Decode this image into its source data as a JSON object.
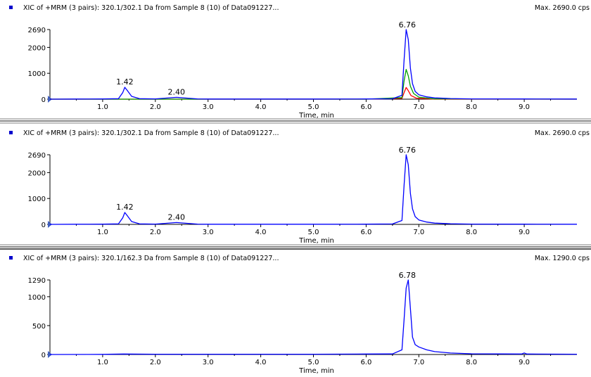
{
  "chart_data": [
    {
      "type": "line",
      "title": "XIC of +MRM (3 pairs): 320.1/302.1 Da  from Sample 8 (10) of Data091227...",
      "max_label": "Max. 2690.0 cps",
      "xlabel": "Time, min",
      "ylabel": "",
      "xlim": [
        0,
        10.0
      ],
      "ylim": [
        0,
        2690
      ],
      "xticks": [
        "1.0",
        "2.0",
        "3.0",
        "4.0",
        "5.0",
        "6.0",
        "7.0",
        "8.0",
        "9.0"
      ],
      "yticks": [
        "0",
        "1000",
        "2000",
        "2690"
      ],
      "peak_labels": [
        {
          "text": "1.42",
          "x": 1.42,
          "y": 460
        },
        {
          "text": "2.40",
          "x": 2.4,
          "y": 70
        },
        {
          "text": "6.76",
          "x": 6.78,
          "y": 2690
        }
      ],
      "series": [
        {
          "color": "#0000ff",
          "x": [
            0.0,
            0.5,
            1.0,
            1.3,
            1.38,
            1.42,
            1.47,
            1.55,
            1.7,
            2.0,
            2.2,
            2.4,
            2.6,
            2.8,
            3.0,
            4.0,
            5.0,
            6.0,
            6.5,
            6.68,
            6.72,
            6.76,
            6.8,
            6.84,
            6.88,
            6.93,
            7.0,
            7.15,
            7.3,
            7.6,
            8.0,
            9.0,
            10.0
          ],
          "y": [
            0,
            5,
            8,
            20,
            250,
            460,
            330,
            110,
            20,
            10,
            40,
            70,
            40,
            10,
            5,
            5,
            5,
            8,
            15,
            150,
            1500,
            2690,
            2300,
            1200,
            600,
            300,
            170,
            90,
            50,
            25,
            12,
            8,
            5
          ]
        },
        {
          "color": "#00a000",
          "x": [
            0.0,
            6.0,
            6.68,
            6.72,
            6.76,
            6.8,
            6.84,
            6.9,
            7.0,
            7.3,
            10.0
          ],
          "y": [
            0,
            0,
            60,
            700,
            1150,
            900,
            500,
            220,
            80,
            10,
            0
          ]
        },
        {
          "color": "#ff0000",
          "x": [
            0.0,
            6.0,
            6.68,
            6.72,
            6.76,
            6.8,
            6.85,
            6.95,
            7.3,
            10.0
          ],
          "y": [
            0,
            0,
            30,
            250,
            450,
            330,
            140,
            40,
            0,
            0
          ]
        }
      ]
    },
    {
      "type": "line",
      "title": "XIC of +MRM (3 pairs): 320.1/302.1 Da  from Sample 8 (10) of Data091227...",
      "max_label": "Max. 2690.0 cps",
      "xlabel": "Time, min",
      "ylabel": "",
      "xlim": [
        0,
        10.0
      ],
      "ylim": [
        0,
        2690
      ],
      "xticks": [
        "1.0",
        "2.0",
        "3.0",
        "4.0",
        "5.0",
        "6.0",
        "7.0",
        "8.0",
        "9.0"
      ],
      "yticks": [
        "0",
        "1000",
        "2000",
        "2690"
      ],
      "peak_labels": [
        {
          "text": "1.42",
          "x": 1.42,
          "y": 460
        },
        {
          "text": "2.40",
          "x": 2.4,
          "y": 70
        },
        {
          "text": "6.76",
          "x": 6.78,
          "y": 2690
        }
      ],
      "series": [
        {
          "color": "#0000ff",
          "x": [
            0.0,
            0.5,
            1.0,
            1.3,
            1.38,
            1.42,
            1.47,
            1.55,
            1.7,
            2.0,
            2.2,
            2.4,
            2.6,
            2.8,
            3.0,
            4.0,
            5.0,
            6.0,
            6.5,
            6.68,
            6.72,
            6.76,
            6.8,
            6.84,
            6.88,
            6.93,
            7.0,
            7.15,
            7.3,
            7.6,
            8.0,
            9.0,
            10.0
          ],
          "y": [
            0,
            5,
            8,
            20,
            250,
            460,
            330,
            110,
            20,
            10,
            40,
            70,
            40,
            10,
            5,
            5,
            5,
            8,
            15,
            150,
            1500,
            2690,
            2300,
            1200,
            600,
            300,
            170,
            90,
            50,
            25,
            12,
            8,
            5
          ]
        }
      ]
    },
    {
      "type": "line",
      "title": "XIC of +MRM (3 pairs): 320.1/162.3 Da  from Sample 8 (10) of Data091227...",
      "max_label": "Max. 1290.0 cps",
      "xlabel": "Time, min",
      "ylabel": "",
      "xlim": [
        0,
        10.0
      ],
      "ylim": [
        0,
        1290
      ],
      "xticks": [
        "1.0",
        "2.0",
        "3.0",
        "4.0",
        "5.0",
        "6.0",
        "7.0",
        "8.0",
        "9.0"
      ],
      "yticks": [
        "0",
        "500",
        "1000",
        "1290"
      ],
      "peak_labels": [
        {
          "text": "6.78",
          "x": 6.78,
          "y": 1290
        }
      ],
      "series": [
        {
          "color": "#0000ff",
          "x": [
            0.0,
            1.0,
            1.4,
            2.0,
            3.0,
            4.0,
            5.0,
            6.0,
            6.5,
            6.68,
            6.72,
            6.76,
            6.8,
            6.84,
            6.88,
            6.93,
            7.0,
            7.15,
            7.3,
            7.6,
            8.0,
            8.95,
            9.0,
            9.05,
            10.0
          ],
          "y": [
            0,
            3,
            8,
            5,
            5,
            5,
            5,
            8,
            10,
            80,
            600,
            1150,
            1290,
            800,
            300,
            170,
            130,
            80,
            50,
            25,
            12,
            8,
            25,
            8,
            5
          ]
        }
      ]
    }
  ]
}
